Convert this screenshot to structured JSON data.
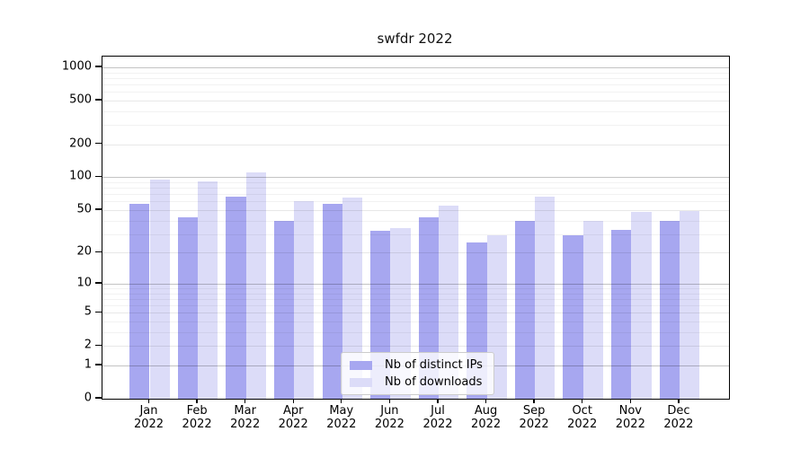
{
  "title": "swfdr 2022",
  "chart_data": {
    "type": "bar",
    "title": "swfdr 2022",
    "categories": [
      "Jan",
      "Feb",
      "Mar",
      "Apr",
      "May",
      "Jun",
      "Jul",
      "Aug",
      "Sep",
      "Oct",
      "Nov",
      "Dec"
    ],
    "category_year": "2022",
    "series": [
      {
        "name": "Nb of distinct IPs",
        "color": "#a7a7f0",
        "values": [
          57,
          43,
          66,
          40,
          57,
          32,
          43,
          25,
          40,
          29,
          33,
          40
        ]
      },
      {
        "name": "Nb of downloads",
        "color": "#dcdcf8",
        "values": [
          95,
          91,
          111,
          61,
          65,
          34,
          55,
          29,
          66,
          40,
          48,
          49
        ]
      }
    ],
    "y_ticks": [
      0,
      1,
      2,
      5,
      10,
      20,
      50,
      100,
      200,
      500,
      1000
    ],
    "y_minor_gridlines": [
      3,
      4,
      6,
      7,
      8,
      9,
      30,
      40,
      60,
      70,
      80,
      90,
      300,
      400,
      600,
      700,
      800,
      900
    ],
    "scale": "log10(1+y)",
    "ylim": [
      0,
      1250
    ],
    "grid": true,
    "legend_position": "inside-bottom-center",
    "axis_color": "#000000",
    "background_color": "#ffffff"
  }
}
